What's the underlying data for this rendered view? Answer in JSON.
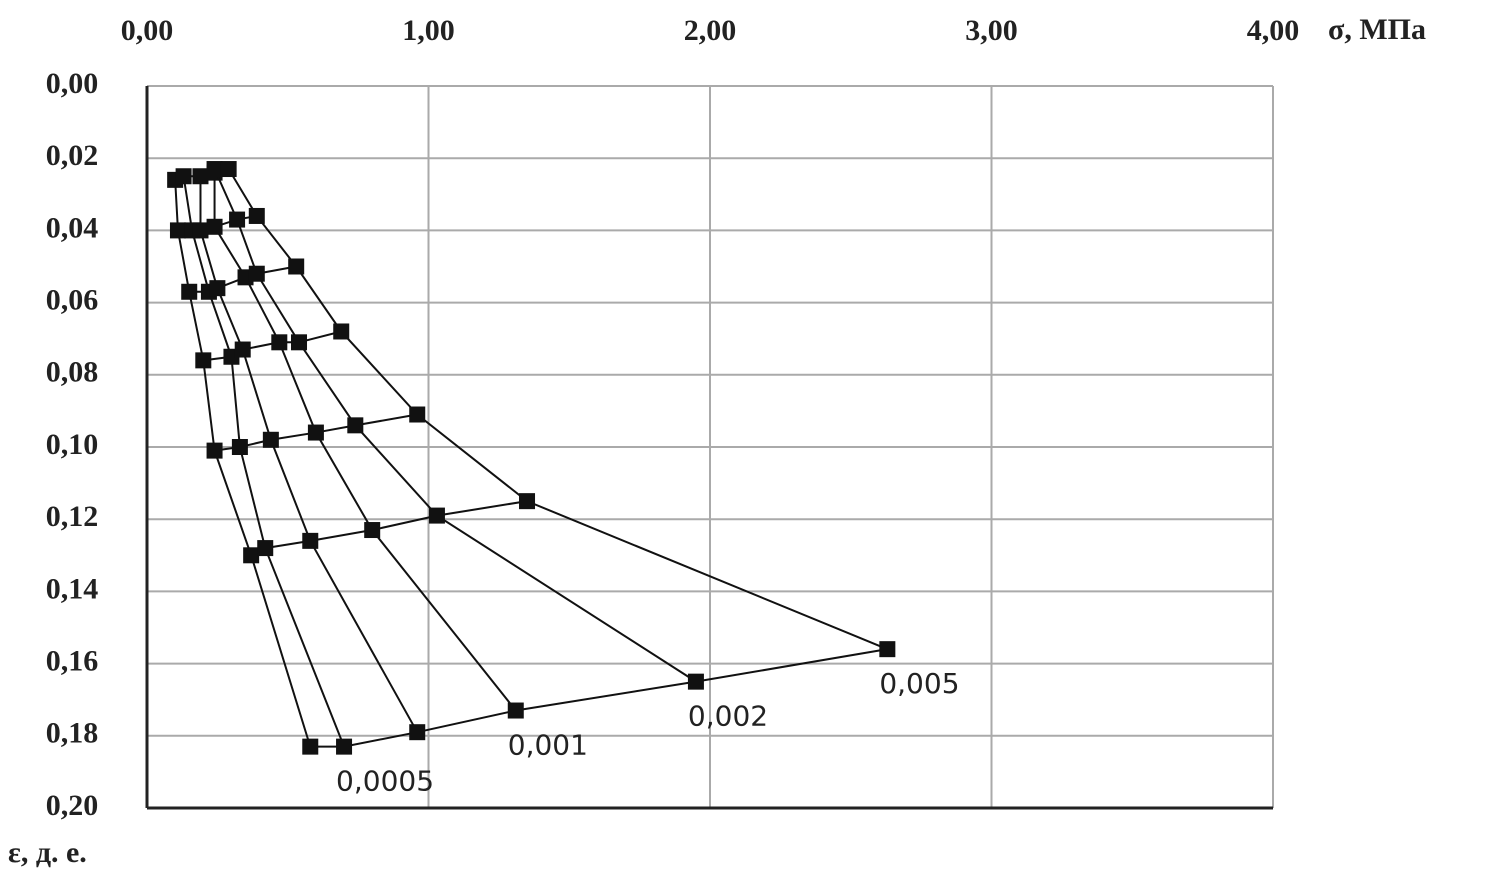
{
  "chart_data": {
    "type": "line",
    "x_label": "σ, МПа",
    "y_label": "ε, д. е.",
    "xlim": [
      0,
      4
    ],
    "ylim": [
      0,
      0.2
    ],
    "y_inverted": true,
    "grid": true,
    "color": "#111111",
    "xticks": [
      {
        "value": 0,
        "label": "0,00"
      },
      {
        "value": 1,
        "label": "1,00"
      },
      {
        "value": 2,
        "label": "2,00"
      },
      {
        "value": 3,
        "label": "3,00"
      },
      {
        "value": 4,
        "label": "4,00"
      }
    ],
    "yticks": [
      {
        "value": 0,
        "label": "0,00"
      },
      {
        "value": 0.02,
        "label": "0,02"
      },
      {
        "value": 0.04,
        "label": "0,04"
      },
      {
        "value": 0.06,
        "label": "0,06"
      },
      {
        "value": 0.08,
        "label": "0,08"
      },
      {
        "value": 0.1,
        "label": "0,10"
      },
      {
        "value": 0.12,
        "label": "0,12"
      },
      {
        "value": 0.14,
        "label": "0,14"
      },
      {
        "value": 0.16,
        "label": "0,16"
      },
      {
        "value": 0.18,
        "label": "0,18"
      },
      {
        "value": 0.2,
        "label": "0,20"
      }
    ],
    "series": [
      {
        "x": [
          0.1,
          0.11,
          0.15,
          0.2,
          0.24,
          0.37,
          0.58
        ],
        "values": [
          0.026,
          0.04,
          0.057,
          0.076,
          0.101,
          0.13,
          0.183
        ]
      },
      {
        "name": "0,0005",
        "x": [
          0.13,
          0.16,
          0.22,
          0.3,
          0.33,
          0.42,
          0.7
        ],
        "values": [
          0.025,
          0.04,
          0.057,
          0.075,
          0.1,
          0.128,
          0.183
        ]
      },
      {
        "x": [
          0.19,
          0.19,
          0.25,
          0.34,
          0.44,
          0.58,
          0.96
        ],
        "values": [
          0.025,
          0.04,
          0.056,
          0.073,
          0.098,
          0.126,
          0.179
        ]
      },
      {
        "name": "0,001",
        "x": [
          0.24,
          0.24,
          0.35,
          0.47,
          0.6,
          0.8,
          1.31
        ],
        "values": [
          0.024,
          0.039,
          0.053,
          0.071,
          0.096,
          0.123,
          0.173
        ]
      },
      {
        "name": "0,002",
        "x": [
          0.24,
          0.32,
          0.39,
          0.54,
          0.74,
          1.03,
          1.95
        ],
        "values": [
          0.023,
          0.037,
          0.052,
          0.071,
          0.094,
          0.119,
          0.165
        ]
      },
      {
        "name": "0,005",
        "x": [
          0.29,
          0.39,
          0.53,
          0.69,
          0.96,
          1.35,
          2.63
        ],
        "values": [
          0.023,
          0.036,
          0.05,
          0.068,
          0.091,
          0.115,
          0.156
        ]
      }
    ]
  }
}
